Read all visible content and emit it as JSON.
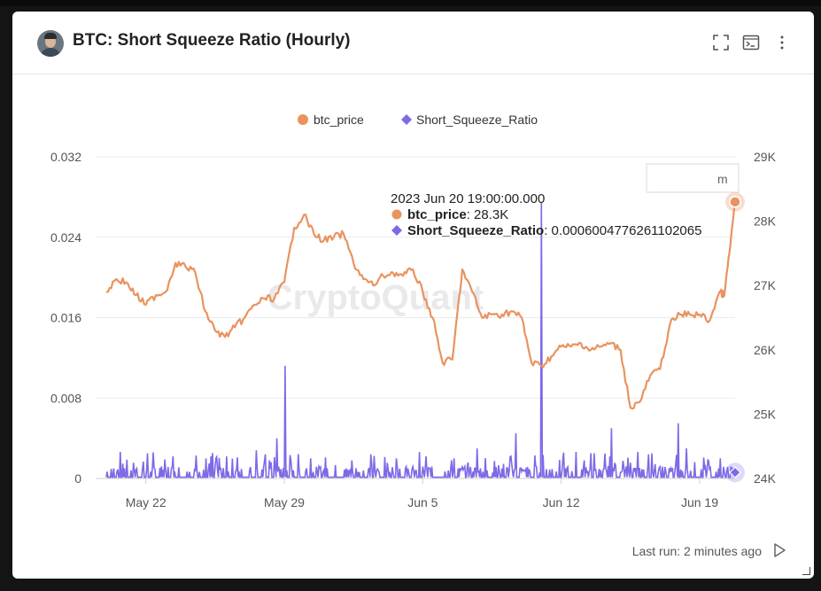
{
  "header": {
    "title": "BTC: Short Squeeze Ratio (Hourly)",
    "icons": [
      "fullscreen-icon",
      "terminal-icon",
      "more-vert-icon"
    ]
  },
  "footer": {
    "last_run": "Last run: 2 minutes ago",
    "run_icon": "play-icon"
  },
  "watermark": "CryptoQuant",
  "search_fragment": "m",
  "colors": {
    "btc_price": "#e9935f",
    "short_squeeze_ratio": "#7c6ae6",
    "grid": "#ebebeb",
    "axis_text": "#555555"
  },
  "tooltip": {
    "time": "2023 Jun 20 19:00:00.000",
    "row1_name": "btc_price",
    "row1_value": ": 28.3K",
    "row2_name": "Short_Squeeze_Ratio",
    "row2_value": ": 0.0006004776261102065"
  },
  "chart_data": {
    "type": "line",
    "title": "BTC: Short Squeeze Ratio (Hourly)",
    "legend": {
      "position": "top-center",
      "entries": [
        "btc_price",
        "Short_Squeeze_Ratio"
      ]
    },
    "grid": true,
    "x_range": [
      "2023-05-20",
      "2023-06-20"
    ],
    "x_ticks": [
      "May 22",
      "May 29",
      "Jun 5",
      "Jun 12",
      "Jun 19"
    ],
    "y_left": {
      "ticks": [
        "0",
        "0.008",
        "0.016",
        "0.024",
        "0.032"
      ],
      "range": [
        0,
        0.032
      ]
    },
    "y_right": {
      "ticks": [
        "24K",
        "25K",
        "26K",
        "27K",
        "28K",
        "29K"
      ],
      "range": [
        24000,
        29000
      ]
    },
    "series": [
      {
        "name": "btc_price",
        "axis": "right",
        "points": [
          [
            "2023-05-20",
            26900
          ],
          [
            "2023-05-20T12:00",
            27100
          ],
          [
            "2023-05-21",
            27050
          ],
          [
            "2023-05-21T12:00",
            26850
          ],
          [
            "2023-05-22",
            26700
          ],
          [
            "2023-05-22T12:00",
            26850
          ],
          [
            "2023-05-23",
            26900
          ],
          [
            "2023-05-23T12:00",
            27350
          ],
          [
            "2023-05-24",
            27300
          ],
          [
            "2023-05-24T12:00",
            27200
          ],
          [
            "2023-05-25",
            26600
          ],
          [
            "2023-05-25T12:00",
            26300
          ],
          [
            "2023-05-26",
            26200
          ],
          [
            "2023-05-26T12:00",
            26350
          ],
          [
            "2023-05-27",
            26500
          ],
          [
            "2023-05-27T12:00",
            26700
          ],
          [
            "2023-05-28",
            26800
          ],
          [
            "2023-05-28T12:00",
            26800
          ],
          [
            "2023-05-29",
            27050
          ],
          [
            "2023-05-29T12:00",
            27900
          ],
          [
            "2023-05-30",
            28100
          ],
          [
            "2023-05-30T12:00",
            27800
          ],
          [
            "2023-05-31",
            27700
          ],
          [
            "2023-05-31T12:00",
            27750
          ],
          [
            "2023-06-01",
            27800
          ],
          [
            "2023-06-01T12:00",
            27350
          ],
          [
            "2023-06-02",
            27100
          ],
          [
            "2023-06-02T12:00",
            27000
          ],
          [
            "2023-06-03",
            27150
          ],
          [
            "2023-06-03T12:00",
            27200
          ],
          [
            "2023-06-04",
            27150
          ],
          [
            "2023-06-04T12:00",
            27250
          ],
          [
            "2023-06-05",
            26900
          ],
          [
            "2023-06-05T12:00",
            26500
          ],
          [
            "2023-06-06",
            25800
          ],
          [
            "2023-06-06T12:00",
            25850
          ],
          [
            "2023-06-07",
            27250
          ],
          [
            "2023-06-07T12:00",
            26900
          ],
          [
            "2023-06-08",
            26500
          ],
          [
            "2023-06-08T12:00",
            26550
          ],
          [
            "2023-06-09",
            26550
          ],
          [
            "2023-06-09T12:00",
            26600
          ],
          [
            "2023-06-10",
            26500
          ],
          [
            "2023-06-10T12:00",
            25800
          ],
          [
            "2023-06-11",
            25750
          ],
          [
            "2023-06-11T12:00",
            25900
          ],
          [
            "2023-06-12",
            26050
          ],
          [
            "2023-06-12T12:00",
            26050
          ],
          [
            "2023-06-13",
            26100
          ],
          [
            "2023-06-13T12:00",
            26000
          ],
          [
            "2023-06-14",
            26050
          ],
          [
            "2023-06-14T12:00",
            26100
          ],
          [
            "2023-06-15",
            26000
          ],
          [
            "2023-06-15T12:00",
            25100
          ],
          [
            "2023-06-16",
            25200
          ],
          [
            "2023-06-16T12:00",
            25600
          ],
          [
            "2023-06-17",
            25700
          ],
          [
            "2023-06-17T12:00",
            26400
          ],
          [
            "2023-06-18",
            26550
          ],
          [
            "2023-06-18T12:00",
            26550
          ],
          [
            "2023-06-19",
            26550
          ],
          [
            "2023-06-19T12:00",
            26450
          ],
          [
            "2023-06-20",
            26900
          ],
          [
            "2023-06-20T06:00",
            26850
          ],
          [
            "2023-06-20T12:00",
            27500
          ],
          [
            "2023-06-20T19:00",
            28300
          ]
        ]
      },
      {
        "name": "Short_Squeeze_Ratio",
        "axis": "left",
        "baseline": 0.0006,
        "spikes": [
          [
            "2023-05-22T02:00",
            0.0025
          ],
          [
            "2023-05-23T09:00",
            0.0022
          ],
          [
            "2023-05-25T05:00",
            0.0015
          ],
          [
            "2023-05-27T14:00",
            0.0028
          ],
          [
            "2023-05-28T06:00",
            0.0018
          ],
          [
            "2023-05-28T15:00",
            0.004
          ],
          [
            "2023-05-29T01:00",
            0.0112
          ],
          [
            "2023-05-30T08:00",
            0.002
          ],
          [
            "2023-06-01T10:00",
            0.0018
          ],
          [
            "2023-06-03T16:00",
            0.002
          ],
          [
            "2023-06-05T04:00",
            0.0022
          ],
          [
            "2023-06-07T18:00",
            0.003
          ],
          [
            "2023-06-09T17:00",
            0.0045
          ],
          [
            "2023-06-11T00:00",
            0.0275
          ],
          [
            "2023-06-13T04:00",
            0.0018
          ],
          [
            "2023-06-14T13:00",
            0.005
          ],
          [
            "2023-06-16T14:00",
            0.0025
          ],
          [
            "2023-06-17T22:00",
            0.0055
          ],
          [
            "2023-06-18T08:00",
            0.003
          ],
          [
            "2023-06-20T01:00",
            0.002
          ],
          [
            "2023-06-20T19:00",
            0.0006
          ]
        ]
      }
    ]
  }
}
